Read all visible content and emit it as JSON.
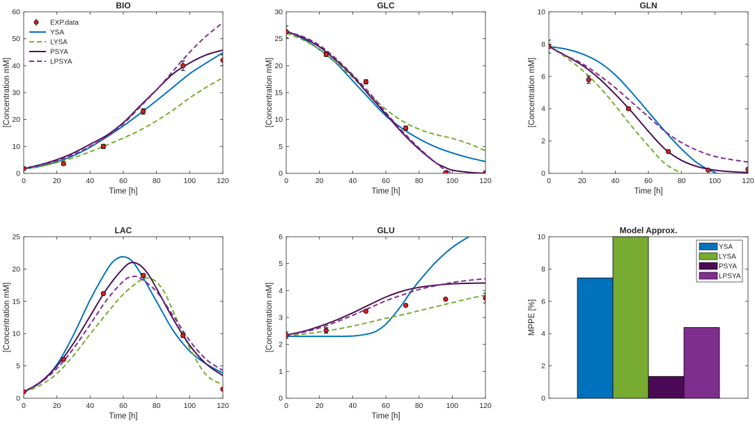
{
  "colors": {
    "YSA": "#0072BD",
    "LYSA": "#77AC30",
    "PSYA": "#4B1153",
    "LPSYA": "#7E2F8E",
    "exp_marker": "#D62021",
    "bar_YSA": "#0072BD",
    "bar_LYSA": "#77AC30",
    "bar_PSYA": "#4B0A55",
    "bar_LPSYA": "#7E2F8E"
  },
  "chart_data": [
    {
      "id": "bio",
      "type": "line",
      "title": "BIO",
      "xlabel": "Time [h]",
      "ylabel": "[Concentration mM]",
      "xlim": [
        0,
        120
      ],
      "ylim": [
        0,
        60
      ],
      "xticks": [
        "0",
        "20",
        "40",
        "60",
        "80",
        "100",
        "120"
      ],
      "yticks": [
        "0",
        "10",
        "20",
        "30",
        "40",
        "50",
        "60"
      ],
      "legend": [
        "EXP.data",
        "YSA",
        "LYSA",
        "PSYA",
        "LPSYA"
      ],
      "legend_location": "top-left",
      "exp": {
        "x": [
          0,
          24,
          48,
          72,
          96,
          120
        ],
        "y": [
          1.8,
          3.6,
          10,
          23,
          40,
          42
        ],
        "err": [
          0.6,
          0.6,
          0.8,
          1.0,
          1.8,
          2.0
        ]
      },
      "series": [
        {
          "name": "YSA",
          "style": "solid",
          "x": [
            0,
            10,
            20,
            30,
            40,
            50,
            60,
            70,
            80,
            90,
            100,
            110,
            120
          ],
          "y": [
            1.6,
            2.6,
            4.3,
            6.6,
            9.7,
            13.5,
            17.6,
            22.2,
            27.0,
            32.0,
            37.0,
            41.0,
            44.8
          ]
        },
        {
          "name": "LYSA",
          "style": "dashed",
          "x": [
            0,
            10,
            20,
            30,
            40,
            50,
            60,
            70,
            80,
            90,
            100,
            110,
            120
          ],
          "y": [
            1.6,
            2.6,
            4.0,
            5.8,
            8.0,
            10.5,
            13.1,
            16.0,
            19.5,
            23.5,
            28.0,
            32.0,
            35.5
          ]
        },
        {
          "name": "PSYA",
          "style": "solid",
          "x": [
            0,
            10,
            20,
            30,
            40,
            50,
            60,
            70,
            80,
            90,
            100,
            110,
            120
          ],
          "y": [
            1.8,
            3.2,
            5.1,
            7.6,
            10.8,
            14.1,
            18.8,
            25.0,
            31.0,
            37.0,
            41.0,
            44.0,
            45.8
          ]
        },
        {
          "name": "LPSYA",
          "style": "dashed",
          "x": [
            0,
            10,
            20,
            30,
            40,
            50,
            60,
            70,
            80,
            90,
            100,
            110,
            120
          ],
          "y": [
            1.8,
            3.0,
            4.6,
            7.0,
            10.0,
            13.6,
            18.4,
            24.6,
            31.0,
            38.0,
            45.0,
            51.0,
            56.0
          ]
        }
      ]
    },
    {
      "id": "glc",
      "type": "line",
      "title": "GLC",
      "xlabel": "Time [h]",
      "ylabel": "[Concentration mM]",
      "xlim": [
        0,
        120
      ],
      "ylim": [
        0,
        30
      ],
      "xticks": [
        "0",
        "20",
        "40",
        "60",
        "80",
        "100",
        "120"
      ],
      "yticks": [
        "0",
        "5",
        "10",
        "15",
        "20",
        "25",
        "30"
      ],
      "exp": {
        "x": [
          0,
          24,
          48,
          72,
          96,
          120
        ],
        "y": [
          26.3,
          22.1,
          17.0,
          8.4,
          0.1,
          0.1
        ],
        "err": [
          1.1,
          0.4,
          0.4,
          0.4,
          0.1,
          0.3
        ]
      },
      "series": [
        {
          "name": "YSA",
          "style": "solid",
          "x": [
            0,
            10,
            20,
            30,
            40,
            50,
            60,
            70,
            80,
            90,
            100,
            110,
            120
          ],
          "y": [
            26.5,
            25.0,
            23.0,
            20.5,
            17.2,
            13.9,
            10.7,
            8.3,
            6.4,
            4.9,
            3.8,
            2.9,
            2.2
          ]
        },
        {
          "name": "LYSA",
          "style": "dashed",
          "x": [
            0,
            10,
            20,
            30,
            40,
            50,
            60,
            70,
            80,
            90,
            100,
            110,
            120
          ],
          "y": [
            26.0,
            24.8,
            23.0,
            20.6,
            17.8,
            14.7,
            11.9,
            9.7,
            8.2,
            7.2,
            6.5,
            5.5,
            4.2
          ]
        },
        {
          "name": "PSYA",
          "style": "solid",
          "x": [
            0,
            10,
            20,
            30,
            40,
            50,
            60,
            70,
            80,
            90,
            95,
            100,
            110,
            120
          ],
          "y": [
            26.3,
            25.2,
            23.5,
            21.0,
            18.1,
            14.5,
            11.0,
            7.5,
            4.5,
            2.0,
            1.2,
            0.6,
            0.2,
            0.0
          ]
        },
        {
          "name": "LPSYA",
          "style": "dashed",
          "x": [
            0,
            10,
            20,
            30,
            40,
            50,
            60,
            70,
            80,
            90,
            95,
            100
          ],
          "y": [
            26.3,
            25.4,
            23.8,
            21.3,
            18.3,
            15.0,
            11.3,
            7.8,
            4.7,
            2.0,
            0.8,
            0.0
          ]
        }
      ]
    },
    {
      "id": "gln",
      "type": "line",
      "title": "GLN",
      "xlabel": "Time [h]",
      "ylabel": "[Concentration mM]",
      "xlim": [
        0,
        120
      ],
      "ylim": [
        0,
        10
      ],
      "xticks": [
        "0",
        "20",
        "40",
        "60",
        "80",
        "100",
        "120"
      ],
      "yticks": [
        "0",
        "2",
        "4",
        "6",
        "8",
        "10"
      ],
      "exp": {
        "x": [
          0,
          24,
          48,
          72,
          96,
          120
        ],
        "y": [
          7.85,
          5.8,
          4.0,
          1.35,
          0.2,
          0.25
        ],
        "err": [
          0.4,
          0.22,
          0.1,
          0.1,
          0.05,
          0.1
        ]
      },
      "series": [
        {
          "name": "YSA",
          "style": "solid",
          "x": [
            0,
            10,
            20,
            30,
            40,
            50,
            60,
            70,
            80,
            90,
            100,
            102
          ],
          "y": [
            7.85,
            7.7,
            7.4,
            6.9,
            6.1,
            5.0,
            3.8,
            2.6,
            1.5,
            0.6,
            0.05,
            0.0
          ]
        },
        {
          "name": "LYSA",
          "style": "dashed",
          "x": [
            0,
            10,
            20,
            30,
            40,
            50,
            60,
            70,
            80
          ],
          "y": [
            7.85,
            7.2,
            6.4,
            5.4,
            4.2,
            2.9,
            1.7,
            0.6,
            0.0
          ]
        },
        {
          "name": "PSYA",
          "style": "solid",
          "x": [
            0,
            10,
            20,
            30,
            40,
            50,
            60,
            70,
            80,
            90,
            100,
            110,
            120
          ],
          "y": [
            7.85,
            7.3,
            6.7,
            5.9,
            4.9,
            3.8,
            2.6,
            1.5,
            0.8,
            0.4,
            0.2,
            0.1,
            0.05
          ]
        },
        {
          "name": "LPSYA",
          "style": "dashed",
          "x": [
            0,
            10,
            20,
            30,
            40,
            50,
            60,
            70,
            80,
            90,
            100,
            110,
            120
          ],
          "y": [
            7.85,
            7.3,
            6.8,
            6.1,
            5.3,
            4.4,
            3.5,
            2.6,
            1.9,
            1.4,
            1.05,
            0.85,
            0.7
          ]
        }
      ]
    },
    {
      "id": "lac",
      "type": "line",
      "title": "LAC",
      "xlabel": "Time [h]",
      "ylabel": "[Concentration mM]",
      "xlim": [
        0,
        120
      ],
      "ylim": [
        0,
        25
      ],
      "xticks": [
        "0",
        "20",
        "40",
        "60",
        "80",
        "100",
        "120"
      ],
      "yticks": [
        "0",
        "5",
        "10",
        "15",
        "20",
        "25"
      ],
      "exp": {
        "x": [
          0,
          24,
          48,
          72,
          96,
          120
        ],
        "y": [
          1.0,
          6.0,
          16.2,
          19.0,
          9.7,
          1.4
        ],
        "err": [
          0.2,
          0.2,
          0.2,
          0.3,
          0.3,
          0.2
        ]
      },
      "series": [
        {
          "name": "YSA",
          "style": "solid",
          "x": [
            0,
            10,
            20,
            30,
            40,
            50,
            55,
            60,
            65,
            70,
            80,
            90,
            100,
            110,
            120
          ],
          "y": [
            1.0,
            2.4,
            5.2,
            9.8,
            15.2,
            19.8,
            21.4,
            21.9,
            21.3,
            19.5,
            15.0,
            10.5,
            7.3,
            5.3,
            3.9
          ]
        },
        {
          "name": "LYSA",
          "style": "dashed",
          "x": [
            0,
            10,
            20,
            30,
            40,
            50,
            60,
            70,
            75,
            80,
            85,
            90,
            100,
            110,
            120
          ],
          "y": [
            0.9,
            2.0,
            3.8,
            6.6,
            9.9,
            13.1,
            16.1,
            18.2,
            18.6,
            18.0,
            16.3,
            13.5,
            7.8,
            3.6,
            2.1
          ]
        },
        {
          "name": "PSYA",
          "style": "solid",
          "x": [
            0,
            10,
            20,
            30,
            40,
            50,
            60,
            65,
            70,
            75,
            80,
            90,
            100,
            110,
            120
          ],
          "y": [
            1.0,
            2.5,
            5.0,
            8.5,
            12.7,
            16.9,
            20.1,
            21.0,
            20.6,
            19.2,
            17.0,
            12.3,
            8.2,
            5.3,
            3.5
          ]
        },
        {
          "name": "LPSYA",
          "style": "dashed",
          "x": [
            0,
            10,
            20,
            30,
            40,
            50,
            60,
            65,
            70,
            80,
            90,
            100,
            110,
            120
          ],
          "y": [
            1.0,
            2.4,
            4.6,
            7.7,
            11.4,
            15.2,
            18.1,
            18.8,
            18.6,
            16.5,
            12.8,
            8.9,
            6.0,
            4.3
          ]
        }
      ]
    },
    {
      "id": "glu",
      "type": "line",
      "title": "GLU",
      "xlabel": "Time [h]",
      "ylabel": "[Concentration mM]",
      "xlim": [
        0,
        120
      ],
      "ylim": [
        0,
        6
      ],
      "xticks": [
        "0",
        "20",
        "40",
        "60",
        "80",
        "100",
        "120"
      ],
      "yticks": [
        "0",
        "1",
        "2",
        "3",
        "4",
        "5",
        "6"
      ],
      "exp": {
        "x": [
          0,
          24,
          48,
          72,
          96,
          120
        ],
        "y": [
          2.34,
          2.52,
          3.23,
          3.45,
          3.68,
          3.72
        ],
        "err": [
          0.12,
          0.1,
          0.05,
          0.04,
          0.03,
          0.18
        ]
      },
      "series": [
        {
          "name": "YSA",
          "style": "solid",
          "x": [
            0,
            10,
            20,
            30,
            40,
            50,
            55,
            60,
            65,
            70,
            75,
            80,
            90,
            100,
            110,
            112
          ],
          "y": [
            2.3,
            2.3,
            2.3,
            2.3,
            2.31,
            2.4,
            2.52,
            2.75,
            3.1,
            3.5,
            3.95,
            4.35,
            5.05,
            5.6,
            6.0,
            6.05
          ]
        },
        {
          "name": "LYSA",
          "style": "dashed",
          "x": [
            0,
            10,
            20,
            30,
            40,
            50,
            60,
            70,
            80,
            90,
            100,
            110,
            120
          ],
          "y": [
            2.33,
            2.38,
            2.46,
            2.56,
            2.68,
            2.82,
            2.97,
            3.1,
            3.25,
            3.4,
            3.55,
            3.7,
            3.83
          ]
        },
        {
          "name": "PSYA",
          "style": "solid",
          "x": [
            0,
            10,
            20,
            30,
            40,
            50,
            60,
            70,
            80,
            90,
            100,
            110,
            120
          ],
          "y": [
            2.35,
            2.48,
            2.67,
            2.9,
            3.17,
            3.47,
            3.76,
            3.98,
            4.12,
            4.2,
            4.25,
            4.27,
            4.28
          ]
        },
        {
          "name": "LPSYA",
          "style": "dashed",
          "x": [
            0,
            10,
            20,
            30,
            40,
            50,
            60,
            70,
            80,
            90,
            100,
            110,
            120
          ],
          "y": [
            2.35,
            2.45,
            2.61,
            2.83,
            3.08,
            3.35,
            3.62,
            3.84,
            4.04,
            4.18,
            4.3,
            4.38,
            4.44
          ]
        }
      ]
    },
    {
      "id": "approx",
      "type": "bar",
      "title": "Model Approx.",
      "xlabel": "",
      "ylabel": "MPPE [%]",
      "ylim": [
        0,
        10
      ],
      "yticks": [
        "0",
        "2",
        "4",
        "6",
        "8",
        "10"
      ],
      "categories": [
        "YSA",
        "LYSA",
        "PSYA",
        "LPSYA"
      ],
      "values": [
        7.45,
        10.0,
        1.35,
        4.38
      ],
      "legend": [
        "YSA",
        "LYSA",
        "PSYA",
        "LPSYA"
      ],
      "legend_location": "top-right"
    }
  ]
}
